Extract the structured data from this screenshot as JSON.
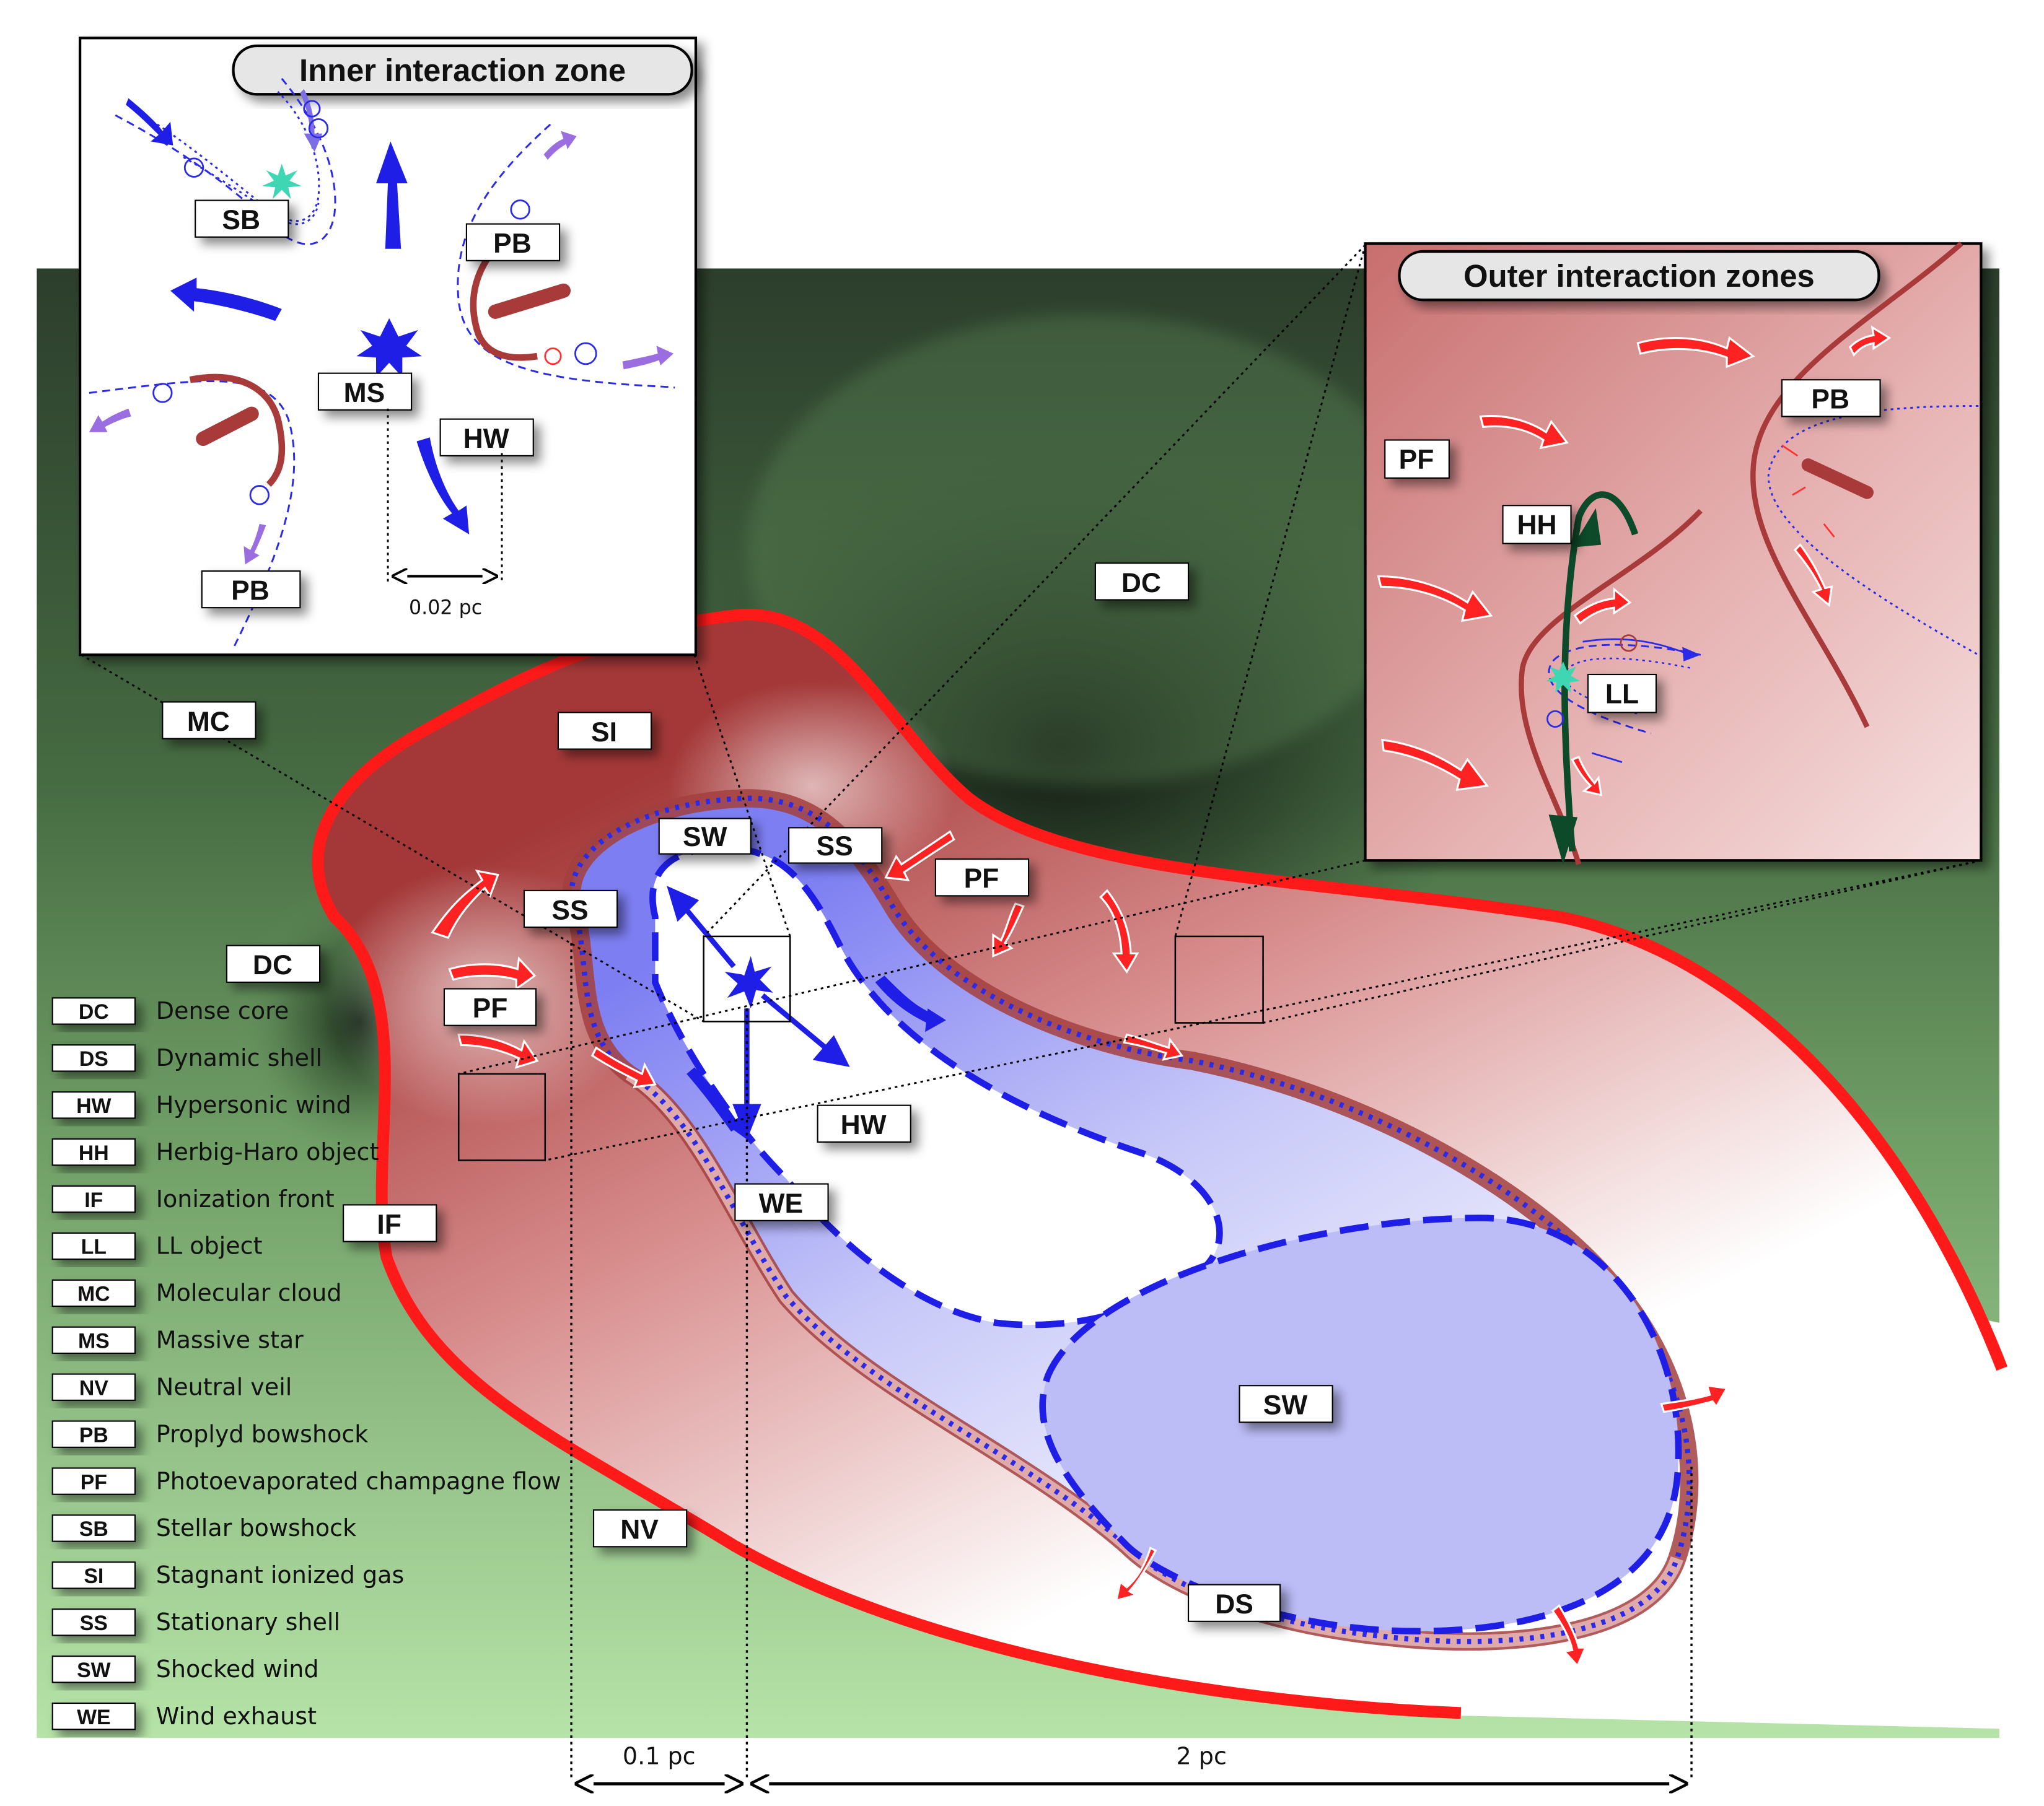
{
  "insets": {
    "inner_title": "Inner interaction zone",
    "outer_title": "Outer interaction zones"
  },
  "labels": {
    "dc_top": "DC",
    "dc_left": "DC",
    "mc": "MC",
    "si": "SI",
    "sw_top": "SW",
    "ss_top": "SS",
    "ss_left": "SS",
    "pf_main": "PF",
    "pf_left": "PF",
    "hw_main": "HW",
    "we": "WE",
    "if": "IF",
    "sw_big": "SW",
    "nv": "NV",
    "ds": "DS",
    "in_sb": "SB",
    "in_pb_top": "PB",
    "in_ms": "MS",
    "in_hw": "HW",
    "in_pb_bottom": "PB",
    "out_pb": "PB",
    "out_pf": "PF",
    "out_hh": "HH",
    "out_ll": "LL"
  },
  "scales": {
    "inner": "0.02 pc",
    "small": "0.1 pc",
    "large": "2 pc"
  },
  "legend": [
    {
      "code": "DC",
      "text": "Dense core"
    },
    {
      "code": "DS",
      "text": "Dynamic shell"
    },
    {
      "code": "HW",
      "text": "Hypersonic wind"
    },
    {
      "code": "HH",
      "text": "Herbig-Haro object"
    },
    {
      "code": "IF",
      "text": "Ionization front"
    },
    {
      "code": "LL",
      "text": "LL object"
    },
    {
      "code": "MC",
      "text": "Molecular cloud"
    },
    {
      "code": "MS",
      "text": "Massive star"
    },
    {
      "code": "NV",
      "text": "Neutral veil"
    },
    {
      "code": "PB",
      "text": "Proplyd bowshock"
    },
    {
      "code": "PF",
      "text": "Photoevaporated champagne flow"
    },
    {
      "code": "SB",
      "text": "Stellar bowshock"
    },
    {
      "code": "SI",
      "text": "Stagnant ionized gas"
    },
    {
      "code": "SS",
      "text": "Stationary shell"
    },
    {
      "code": "SW",
      "text": "Shocked wind"
    },
    {
      "code": "WE",
      "text": "Wind exhaust"
    }
  ],
  "colors": {
    "cloud_dark": "#2c3f2c",
    "cloud_light": "#b4e1a6",
    "ionized_red": "#a83a3a",
    "front_red": "#ff1a1a",
    "wind_blue": "#1e1ee6",
    "shocked_wind_fill": "#bcbcf7",
    "jet_green": "#0d4a2a",
    "star_teal": "#3fd6b4",
    "purple_arrow": "#9a6ee0"
  }
}
